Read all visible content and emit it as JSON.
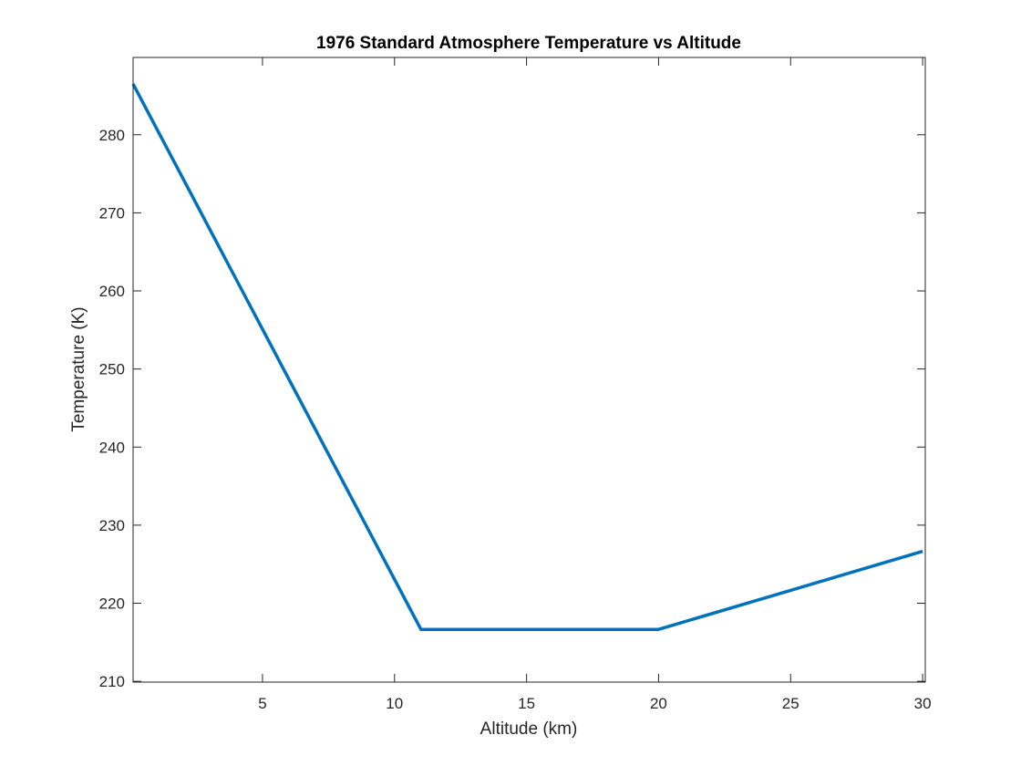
{
  "chart_data": {
    "type": "line",
    "title": "1976 Standard Atmosphere Temperature vs Altitude",
    "xlabel": "Altitude (km)",
    "ylabel": "Temperature (K)",
    "xlim": [
      0.1,
      30.1
    ],
    "ylim": [
      209.9,
      289.9
    ],
    "xticks": [
      5,
      10,
      15,
      20,
      25,
      30
    ],
    "yticks": [
      210,
      220,
      230,
      240,
      250,
      260,
      270,
      280
    ],
    "grid": false,
    "series": [
      {
        "name": "Temperature",
        "color": "#0072BD",
        "x": [
          0.1,
          11,
          20,
          30
        ],
        "y": [
          286.5,
          216.65,
          216.65,
          226.65
        ]
      }
    ]
  }
}
